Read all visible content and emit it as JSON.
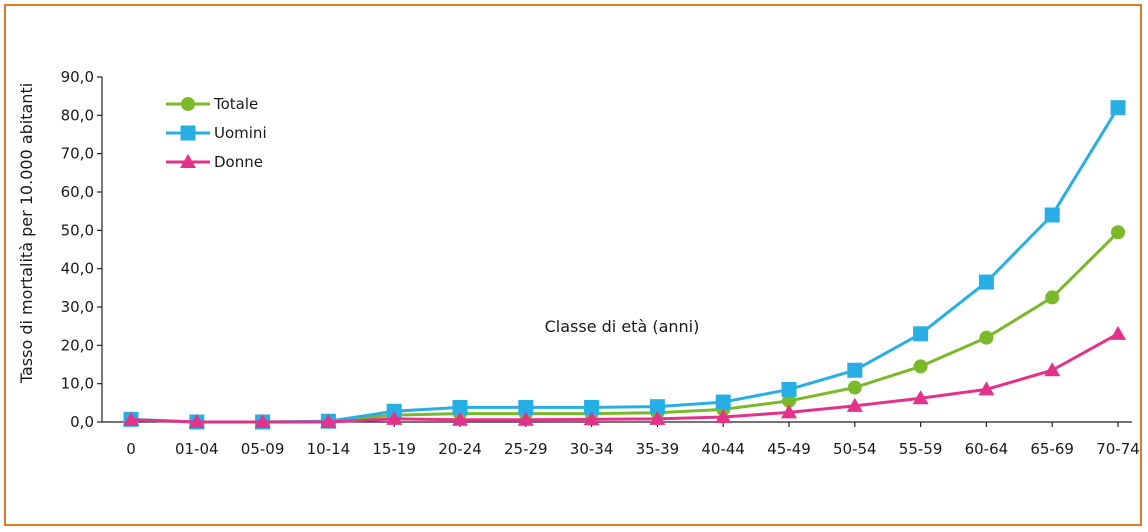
{
  "chart_data": {
    "type": "line",
    "title": "",
    "xlabel": "Classe di età (anni)",
    "ylabel": "Tasso di mortalità per 10.000 abitanti",
    "categories": [
      "0",
      "01-04",
      "05-09",
      "10-14",
      "15-19",
      "20-24",
      "25-29",
      "30-34",
      "35-39",
      "40-44",
      "45-49",
      "50-54",
      "55-59",
      "60-64",
      "65-69",
      "70-74"
    ],
    "ylim": [
      0,
      90
    ],
    "yticks": [
      "0,0",
      "10,0",
      "20,0",
      "30,0",
      "40,0",
      "50,0",
      "60,0",
      "70,0",
      "80,0",
      "90,0"
    ],
    "grid": false,
    "legend_position": "top-left",
    "series": [
      {
        "name": "Totale",
        "color": "#7ab929",
        "marker": "circle",
        "values": [
          0.6,
          0.0,
          0.0,
          0.1,
          1.8,
          2.2,
          2.2,
          2.2,
          2.4,
          3.3,
          5.5,
          9.0,
          14.5,
          22.0,
          32.5,
          49.5
        ]
      },
      {
        "name": "Uomini",
        "color": "#27aee4",
        "marker": "square",
        "values": [
          0.7,
          0.0,
          0.0,
          0.2,
          2.8,
          3.8,
          3.8,
          3.8,
          4.0,
          5.2,
          8.5,
          13.5,
          23.0,
          36.5,
          54.0,
          82.0
        ]
      },
      {
        "name": "Donne",
        "color": "#e2328a",
        "marker": "triangle",
        "values": [
          0.6,
          0.0,
          0.0,
          0.0,
          0.8,
          0.6,
          0.6,
          0.7,
          0.8,
          1.3,
          2.5,
          4.2,
          6.2,
          8.5,
          13.5,
          23.0
        ]
      }
    ]
  }
}
